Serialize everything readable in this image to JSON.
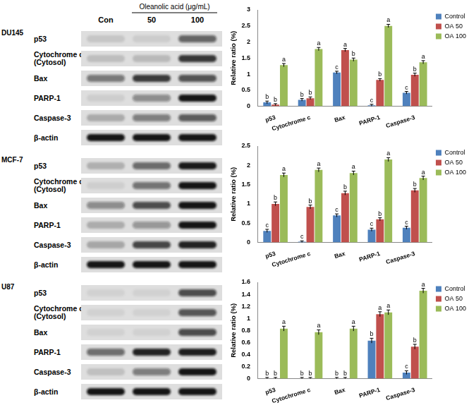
{
  "chart_data": [
    {
      "type": "bar",
      "categories": [
        "p53",
        "Cytochrome c",
        "Bax",
        "PARP-1",
        "Caspase-3"
      ],
      "ylabel": "Relative ratio (%)",
      "ylim": [
        0,
        3
      ],
      "yticks": [
        0,
        0.5,
        1,
        1.5,
        2,
        2.5,
        3
      ],
      "grid": false,
      "legend": "right",
      "series": [
        {
          "name": "Control",
          "color": "#4F81BD",
          "values": [
            0.12,
            0.2,
            1.05,
            0.03,
            0.42
          ],
          "errors": [
            0.04,
            0.04,
            0.04,
            0.03,
            0.04
          ],
          "letters": [
            "b",
            "b",
            "c",
            "c",
            "c"
          ]
        },
        {
          "name": "OA 50",
          "color": "#C0504D",
          "values": [
            0.05,
            0.25,
            1.75,
            0.82,
            0.98
          ],
          "errors": [
            0.03,
            0.04,
            0.05,
            0.04,
            0.05
          ],
          "letters": [
            "b",
            "b",
            "a",
            "b",
            "b"
          ]
        },
        {
          "name": "OA 100",
          "color": "#9BBB59",
          "values": [
            1.28,
            1.78,
            1.45,
            2.5,
            1.37
          ],
          "errors": [
            0.05,
            0.05,
            0.05,
            0.05,
            0.05
          ],
          "letters": [
            "a",
            "a",
            "b",
            "a",
            "a"
          ]
        }
      ]
    },
    {
      "type": "bar",
      "categories": [
        "p53",
        "Cytochrome c",
        "Bax",
        "PARP-1",
        "Caspase-3"
      ],
      "ylabel": "Relative ratio (%)",
      "ylim": [
        0,
        2.5
      ],
      "yticks": [
        0,
        0.5,
        1,
        1.5,
        2,
        2.5
      ],
      "grid": false,
      "legend": "right",
      "series": [
        {
          "name": "Control",
          "color": "#4F81BD",
          "values": [
            0.3,
            0.02,
            0.7,
            0.33,
            0.38
          ],
          "errors": [
            0.04,
            0.02,
            0.04,
            0.04,
            0.04
          ],
          "letters": [
            "c",
            "c",
            "c",
            "c",
            "c"
          ]
        },
        {
          "name": "OA 50",
          "color": "#C0504D",
          "values": [
            1.0,
            0.92,
            1.28,
            0.6,
            1.35
          ],
          "errors": [
            0.05,
            0.05,
            0.05,
            0.04,
            0.05
          ],
          "letters": [
            "b",
            "b",
            "b",
            "b",
            "b"
          ]
        },
        {
          "name": "OA 100",
          "color": "#9BBB59",
          "values": [
            1.75,
            1.88,
            1.8,
            2.15,
            1.67
          ],
          "errors": [
            0.05,
            0.05,
            0.05,
            0.05,
            0.05
          ],
          "letters": [
            "a",
            "a",
            "a",
            "a",
            "a"
          ]
        }
      ]
    },
    {
      "type": "bar",
      "categories": [
        "p53",
        "Cytochrome c",
        "Bax",
        "PARP-1",
        "Caspase-3"
      ],
      "ylabel": "Relative ratio (%)",
      "ylim": [
        0,
        1.6
      ],
      "yticks": [
        0,
        0.2,
        0.4,
        0.6,
        0.8,
        1,
        1.2,
        1.4,
        1.6
      ],
      "grid": false,
      "legend": "right",
      "series": [
        {
          "name": "Control",
          "color": "#4F81BD",
          "values": [
            0,
            0,
            0,
            0.63,
            0.1
          ],
          "errors": [
            0.02,
            0.02,
            0.02,
            0.04,
            0.03
          ],
          "letters": [
            "b",
            "b",
            "b",
            "b",
            "c"
          ]
        },
        {
          "name": "OA 50",
          "color": "#C0504D",
          "values": [
            0,
            0,
            0,
            1.07,
            0.53
          ],
          "errors": [
            0.02,
            0.02,
            0.02,
            0.04,
            0.04
          ],
          "letters": [
            "b",
            "b",
            "b",
            "a",
            "b"
          ]
        },
        {
          "name": "OA 100",
          "color": "#9BBB59",
          "values": [
            0.83,
            0.77,
            0.83,
            1.1,
            1.46
          ],
          "errors": [
            0.04,
            0.04,
            0.04,
            0.04,
            0.04
          ],
          "letters": [
            "a",
            "a",
            "a",
            "a",
            "a"
          ]
        }
      ]
    }
  ],
  "blots": {
    "treatment": "Oleanolic acid (μg/mL)",
    "lanes": [
      "Con",
      "50",
      "100"
    ],
    "panels": [
      {
        "cell_line": "DU145",
        "proteins": [
          [
            "p53"
          ],
          [
            "Cytochrome c",
            "(Cytosol)"
          ],
          [
            "Bax"
          ],
          [
            "PARP-1"
          ],
          [
            "Caspase-3"
          ],
          [
            "β-actin"
          ]
        ]
      },
      {
        "cell_line": "MCF-7",
        "proteins": [
          [
            "p53"
          ],
          [
            "Cytochrome c",
            "(Cytosol)"
          ],
          [
            "Bax"
          ],
          [
            "PARP-1"
          ],
          [
            "Caspase-3"
          ],
          [
            "β-actin"
          ]
        ]
      },
      {
        "cell_line": "U87",
        "proteins": [
          [
            "p53"
          ],
          [
            "Cytochrome c",
            "(Cytosol)"
          ],
          [
            "Bax"
          ],
          [
            "PARP-1"
          ],
          [
            "Caspase-3"
          ],
          [
            "β-actin"
          ]
        ]
      }
    ]
  }
}
